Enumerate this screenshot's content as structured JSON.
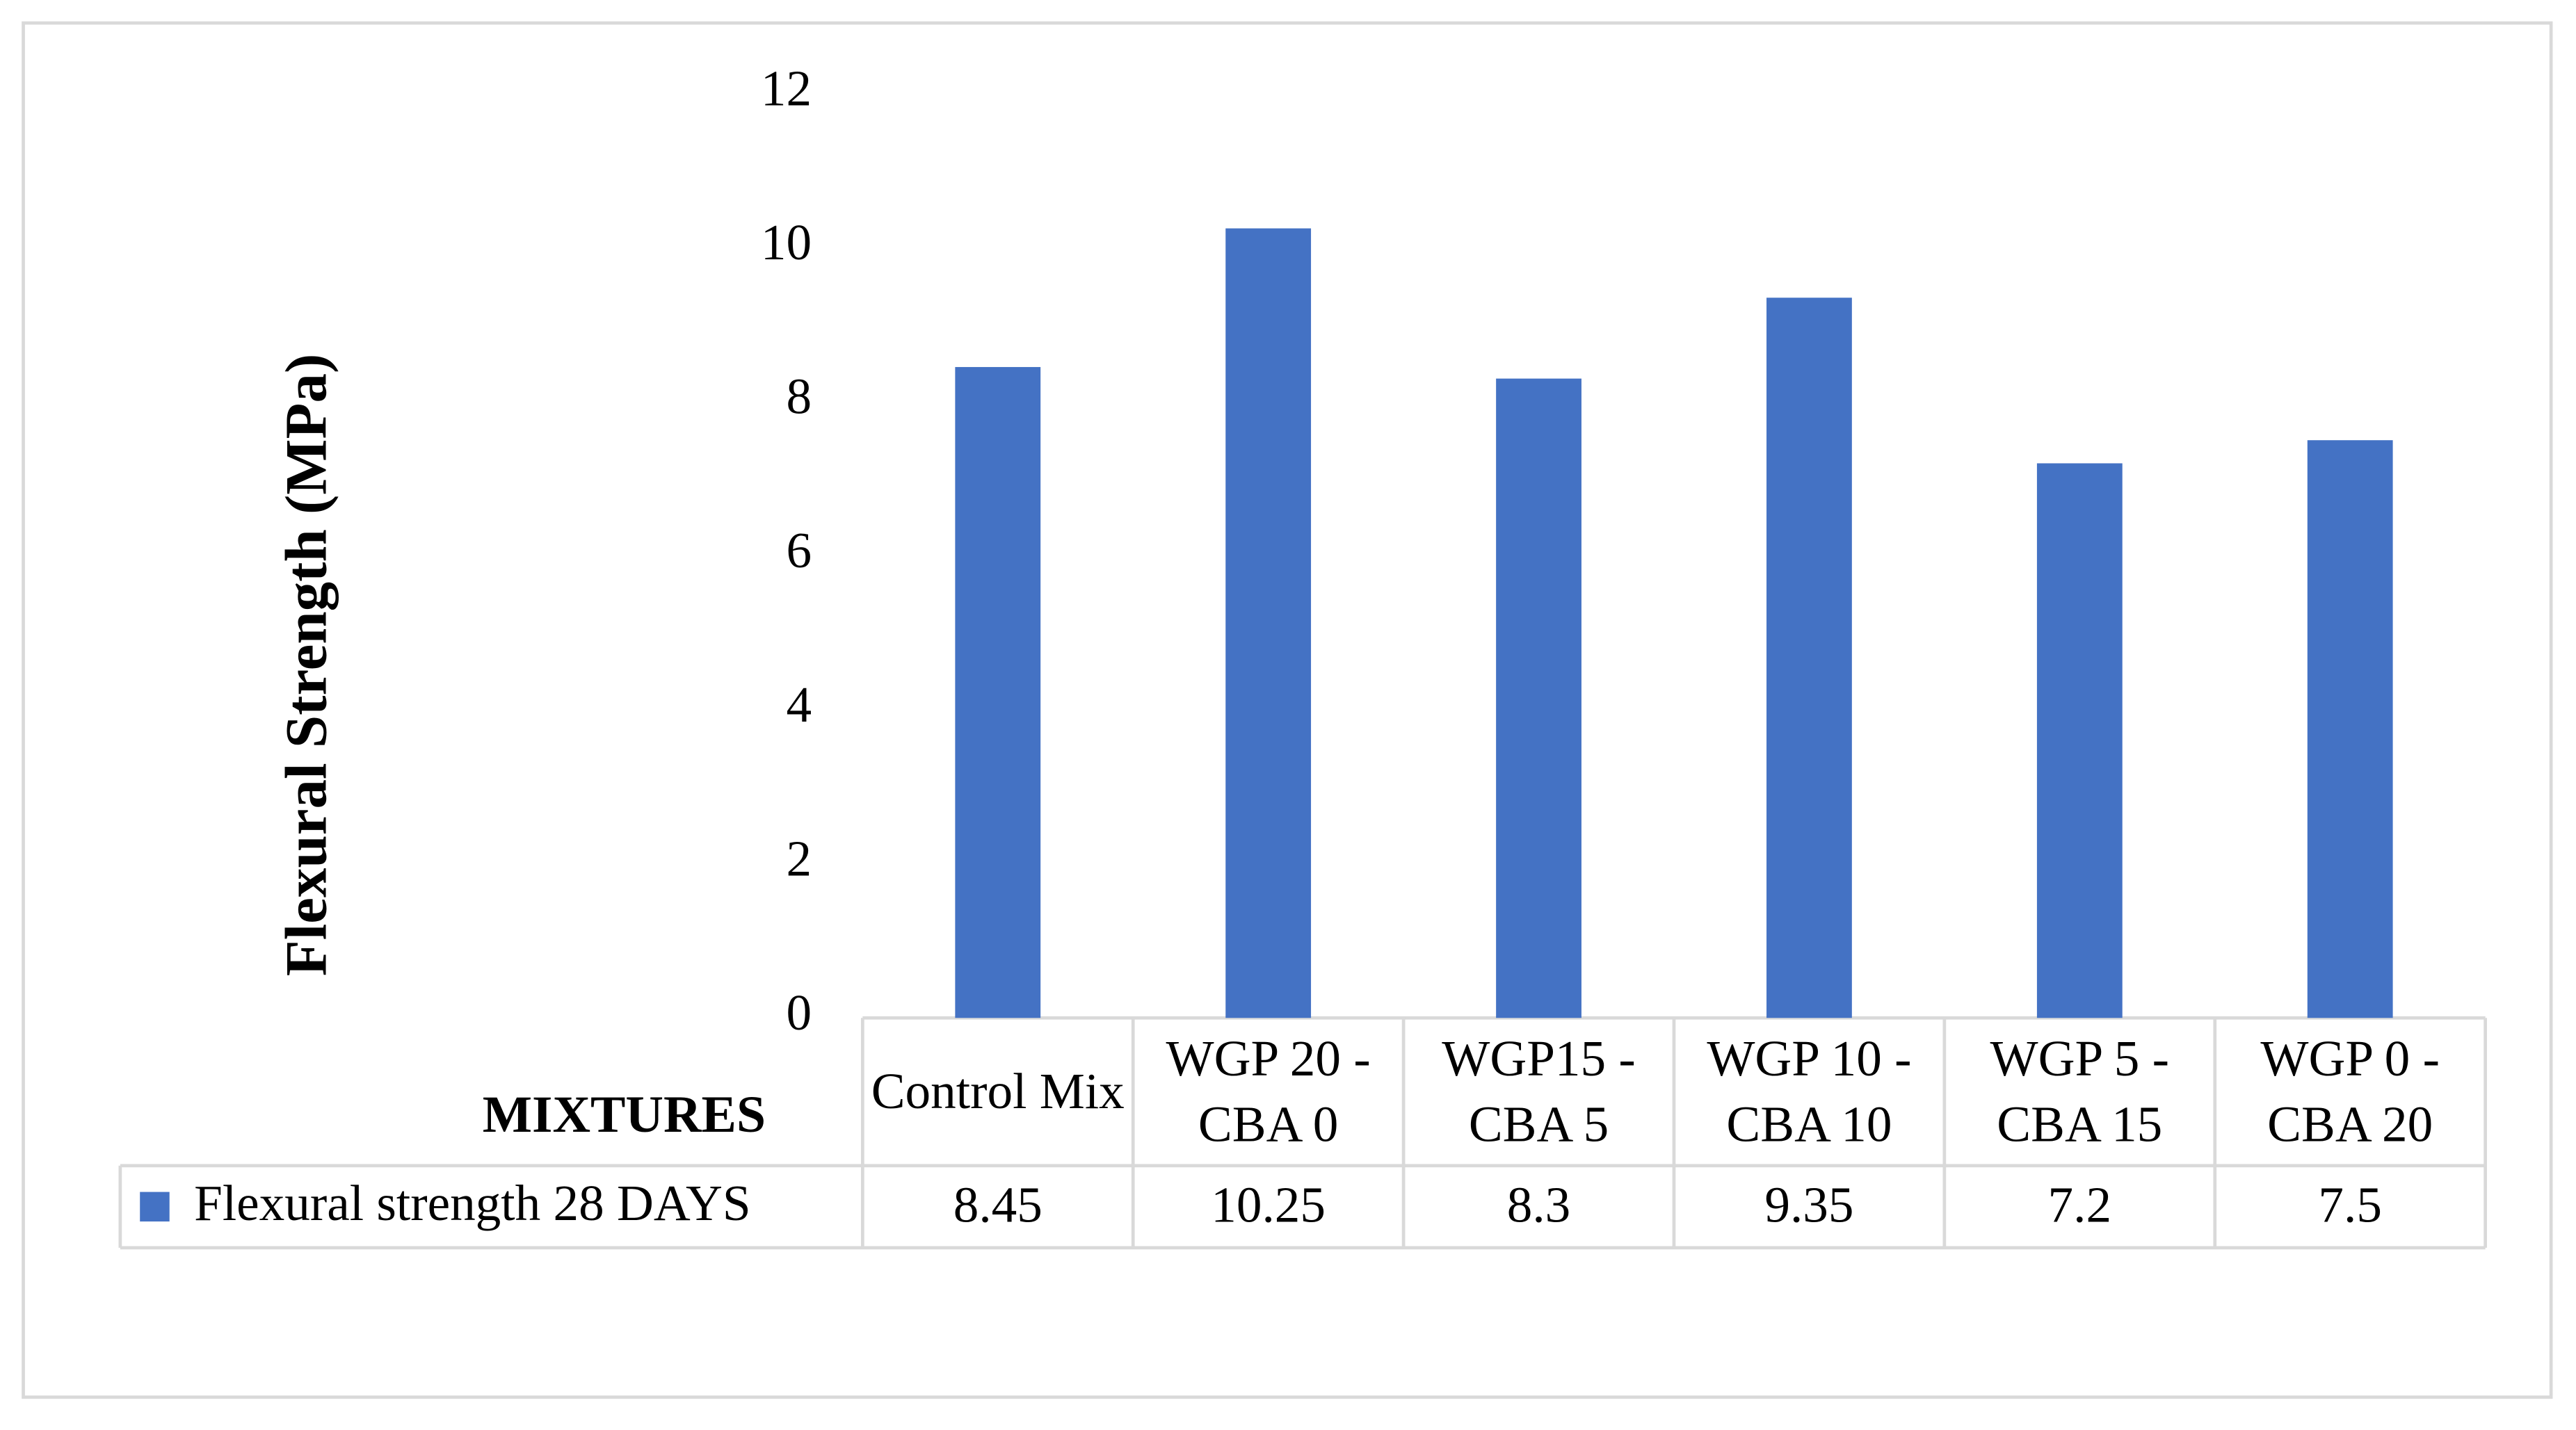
{
  "chart_data": {
    "type": "bar",
    "y_label": "Flexural Strength (MPa)",
    "x_label": "MIXTURES",
    "categories": [
      "Control Mix",
      "WGP 20 - CBA 0",
      "WGP15 - CBA 5",
      "WGP 10 - CBA 10",
      "WGP 5 - CBA 15",
      "WGP 0 - CBA 20"
    ],
    "series": [
      {
        "name": "Flexural strength 28 DAYS",
        "color": "#4472c4",
        "values": [
          8.45,
          10.25,
          8.3,
          9.35,
          7.2,
          7.5
        ]
      }
    ],
    "ylim": [
      0,
      12
    ],
    "yticks": [
      0,
      2,
      4,
      6,
      8,
      10,
      12
    ],
    "grid": false,
    "data_table": true
  }
}
